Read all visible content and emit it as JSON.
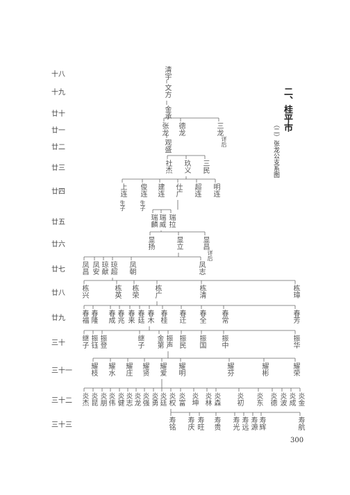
{
  "title": "二、桂平市",
  "subtitle": "（二）张龙公支系图",
  "page_number": "300",
  "generations": [
    {
      "label": "十八",
      "members": [
        "清宇"
      ]
    },
    {
      "label": "十九",
      "members": [
        "文方"
      ]
    },
    {
      "label": "廿十",
      "members": [
        "金承"
      ]
    },
    {
      "label": "廿一",
      "members": [
        "张龙",
        "德龙",
        "三龙"
      ]
    },
    {
      "label": "廿二",
      "members": [
        "观盛"
      ]
    },
    {
      "label": "廿三",
      "members": [
        "社杰",
        "玖义",
        "三民"
      ]
    },
    {
      "label": "廿四",
      "members": [
        "上连",
        "俊连",
        "建连",
        "仕广",
        "超连",
        "明连"
      ]
    },
    {
      "label": "廿五",
      "members": [
        "瑞麟",
        "瑞威",
        "瑞拉"
      ]
    },
    {
      "label": "廿六",
      "members": [
        "显扬",
        "显立",
        "显昌"
      ]
    },
    {
      "label": "廿七",
      "members": [
        "凤昌",
        "凤安",
        "琼献",
        "琼超",
        "凤朝",
        "凤志"
      ]
    },
    {
      "label": "廿八",
      "members": [
        "栋兴",
        "栋英",
        "栋荣",
        "栋广",
        "栋清",
        "栋璋"
      ]
    },
    {
      "label": "廿九",
      "members": [
        "春福",
        "春隆",
        "春成",
        "春兆",
        "春来",
        "春廷",
        "春木",
        "春桂",
        "春迁",
        "春全",
        "春常",
        "春芳"
      ]
    },
    {
      "label": "三十",
      "members": [
        "继子",
        "振钰",
        "振登",
        "继子",
        "金第",
        "振声",
        "振民",
        "振国",
        "振中",
        "振华"
      ]
    },
    {
      "label": "三十一",
      "members": [
        "耀枝",
        "耀水",
        "耀庄",
        "耀贤",
        "耀爱",
        "耀明",
        "耀芬",
        "耀彬",
        "耀荣"
      ]
    },
    {
      "label": "三十二",
      "members": [
        "炎杰",
        "炎昆",
        "炎朋",
        "炎伟",
        "炎健",
        "炎志",
        "炎龙",
        "炎强",
        "炎勇",
        "炎廷",
        "炎权",
        "炎富",
        "炎坤",
        "炎林",
        "炎森",
        "炎初",
        "炎东",
        "炎德",
        "炎波",
        "炎成",
        "炎金"
      ]
    },
    {
      "label": "三十三",
      "members": [
        "寿铭",
        "寿庆",
        "寿旺",
        "寿贵",
        "寿光",
        "寿远",
        "寿源",
        "寿辉",
        "寿航"
      ]
    }
  ],
  "notes": [
    "详后",
    "详后",
    "生子",
    "生子"
  ]
}
